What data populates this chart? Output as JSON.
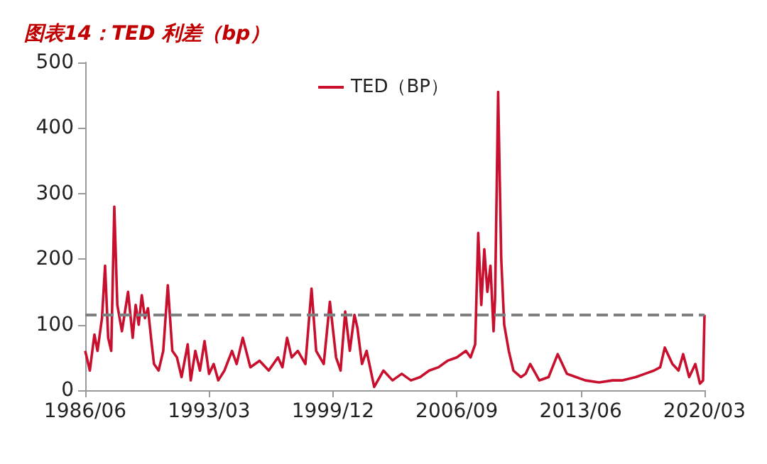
{
  "chart_data": {
    "type": "line",
    "title": "图表14：TED 利差（bp）",
    "x": [
      "1986-06",
      "1986-09",
      "1986-12",
      "1987-02",
      "1987-05",
      "1987-07",
      "1987-09",
      "1987-11",
      "1988-01",
      "1988-03",
      "1988-06",
      "1988-08",
      "1988-10",
      "1989-01",
      "1989-03",
      "1989-05",
      "1989-07",
      "1989-09",
      "1989-11",
      "1990-01",
      "1990-03",
      "1990-06",
      "1990-09",
      "1990-12",
      "1991-03",
      "1991-06",
      "1991-09",
      "1992-01",
      "1992-03",
      "1992-06",
      "1992-09",
      "1992-12",
      "1993-03",
      "1993-06",
      "1993-09",
      "1994-01",
      "1994-06",
      "1994-09",
      "1995-01",
      "1995-06",
      "1995-12",
      "1996-06",
      "1996-12",
      "1997-03",
      "1997-06",
      "1997-09",
      "1998-01",
      "1998-06",
      "1998-10",
      "1999-01",
      "1999-06",
      "1999-10",
      "2000-02",
      "2000-05",
      "2000-08",
      "2000-11",
      "2001-02",
      "2001-04",
      "2001-07",
      "2001-10",
      "2002-03",
      "2002-09",
      "2003-03",
      "2003-09",
      "2004-03",
      "2004-09",
      "2005-03",
      "2005-09",
      "2006-03",
      "2006-09",
      "2007-03",
      "2007-06",
      "2007-09",
      "2007-11",
      "2008-01",
      "2008-03",
      "2008-05",
      "2008-07",
      "2008-09",
      "2008-10",
      "2008-12",
      "2009-02",
      "2009-04",
      "2009-07",
      "2009-10",
      "2010-03",
      "2010-06",
      "2010-09",
      "2011-03",
      "2011-09",
      "2012-03",
      "2012-09",
      "2013-03",
      "2013-09",
      "2014-06",
      "2015-03",
      "2015-09",
      "2016-06",
      "2016-12",
      "2017-06",
      "2017-10",
      "2018-01",
      "2018-06",
      "2018-10",
      "2019-01",
      "2019-05",
      "2019-09",
      "2019-12",
      "2020-02",
      "2020-03"
    ],
    "series": [
      {
        "name": "TED（BP）",
        "color": "#c8102e",
        "values": [
          60,
          30,
          85,
          60,
          110,
          190,
          80,
          60,
          280,
          130,
          90,
          120,
          150,
          80,
          130,
          100,
          145,
          110,
          125,
          80,
          40,
          30,
          60,
          160,
          60,
          50,
          20,
          70,
          15,
          60,
          30,
          75,
          25,
          40,
          15,
          30,
          60,
          40,
          80,
          35,
          45,
          30,
          50,
          35,
          80,
          50,
          60,
          40,
          155,
          60,
          40,
          135,
          50,
          30,
          120,
          60,
          115,
          95,
          40,
          60,
          5,
          30,
          15,
          25,
          15,
          20,
          30,
          35,
          45,
          50,
          60,
          50,
          70,
          240,
          130,
          215,
          150,
          190,
          90,
          140,
          455,
          200,
          100,
          60,
          30,
          20,
          25,
          40,
          15,
          20,
          55,
          25,
          20,
          15,
          12,
          15,
          15,
          20,
          25,
          30,
          35,
          65,
          40,
          30,
          55,
          20,
          40,
          10,
          15,
          115
        ]
      }
    ],
    "ylim": [
      0,
      500
    ],
    "yticks": [
      0,
      100,
      200,
      300,
      400,
      500
    ],
    "xlim": [
      "1986-06",
      "2020-03"
    ],
    "xticks": [
      {
        "value": "1986-06",
        "label": "1986/06"
      },
      {
        "value": "1993-03",
        "label": "1993/03"
      },
      {
        "value": "1999-12",
        "label": "1999/12"
      },
      {
        "value": "2006-09",
        "label": "2006/09"
      },
      {
        "value": "2013-06",
        "label": "2013/06"
      },
      {
        "value": "2020-03",
        "label": "2020/03"
      }
    ],
    "ref_lines": [
      {
        "axis": "y",
        "value": 115,
        "color": "#7f7f7f",
        "line_style": "dashed"
      }
    ],
    "legend": "top",
    "grid": false,
    "marker": "none",
    "line_style": "solid"
  }
}
